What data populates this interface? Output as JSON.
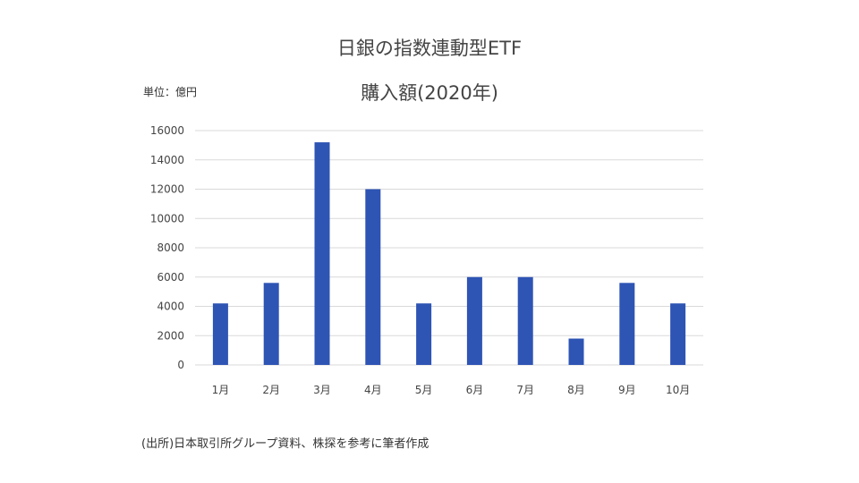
{
  "header": {
    "title_line1": "日銀の指数連動型ETF",
    "title_line2": "購入額(2020年)",
    "unit": "単位：億円"
  },
  "footer": {
    "source": "(出所)日本取引所グループ資料、株探を参考に筆者作成"
  },
  "chart_data": {
    "type": "bar",
    "title": "日銀の指数連動型ETF 購入額(2020年)",
    "ylabel": "単位：億円",
    "xlabel": "",
    "categories": [
      "1月",
      "2月",
      "3月",
      "4月",
      "5月",
      "6月",
      "7月",
      "8月",
      "9月",
      "10月"
    ],
    "values": [
      4200,
      5600,
      15200,
      12000,
      4200,
      6000,
      6000,
      1800,
      5600,
      4200
    ],
    "ylim": [
      0,
      16000
    ],
    "yticks": [
      0,
      2000,
      4000,
      6000,
      8000,
      10000,
      12000,
      14000,
      16000
    ],
    "grid": true,
    "legend": "none",
    "bar_color": "#2E54B4",
    "grid_color": "#D9D9D9"
  }
}
